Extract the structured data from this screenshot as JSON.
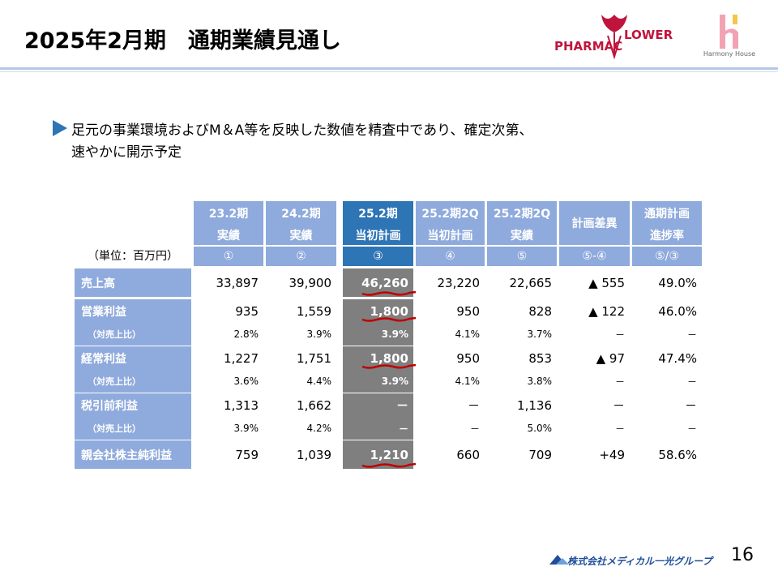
{
  "header": {
    "title": "2025年2月期　通期業績見通し",
    "logo_left": [
      "PHARMAC",
      "LOWER"
    ],
    "logo_right": "Harmony House"
  },
  "bullet": [
    "足元の事業環境およびM＆A等を反映した数値を精査中であり、確定次第、",
    "速やかに開示予定"
  ],
  "table": {
    "unit": "（単位：百万円）",
    "columns": [
      [
        "23.2期",
        "実績",
        "①"
      ],
      [
        "24.2期",
        "実績",
        "②"
      ],
      [
        "25.2期",
        "当初計画",
        "③"
      ],
      [
        "25.2期2Q",
        "当初計画",
        "④"
      ],
      [
        "25.2期2Q",
        "実績",
        "⑤"
      ],
      [
        "計画差異",
        "⑤-④"
      ],
      [
        "通期計画",
        "進捗率",
        "⑤/③"
      ]
    ],
    "rows": [
      {
        "label": "売上高",
        "cells": [
          "33,897",
          "39,900",
          "46,260",
          "23,220",
          "22,665",
          "▲ 555",
          "49.0%"
        ]
      },
      {
        "label": "営業利益",
        "cells": [
          "935",
          "1,559",
          "1,800",
          "950",
          "828",
          "▲ 122",
          "46.0%"
        ]
      },
      {
        "label": "（対売上比）",
        "cells": [
          "2.8%",
          "3.9%",
          "3.9%",
          "4.1%",
          "3.7%",
          "－",
          "－"
        ]
      },
      {
        "label": "経常利益",
        "cells": [
          "1,227",
          "1,751",
          "1,800",
          "950",
          "853",
          "▲ 97",
          "47.4%"
        ]
      },
      {
        "label": "（対売上比）",
        "cells": [
          "3.6%",
          "4.4%",
          "3.9%",
          "4.1%",
          "3.8%",
          "－",
          "－"
        ]
      },
      {
        "label": "税引前利益",
        "cells": [
          "1,313",
          "1,662",
          "－",
          "－",
          "1,136",
          "－",
          "－"
        ]
      },
      {
        "label": "（対売上比）",
        "cells": [
          "3.9%",
          "4.2%",
          "－",
          "－",
          "5.0%",
          "－",
          "－"
        ]
      },
      {
        "label": "親会社株主純利益",
        "cells": [
          "759",
          "1,039",
          "1,210",
          "660",
          "709",
          "+49",
          "58.6%"
        ]
      }
    ]
  },
  "footer": {
    "company": "株式会社メディカル一光グループ",
    "page": "16"
  }
}
